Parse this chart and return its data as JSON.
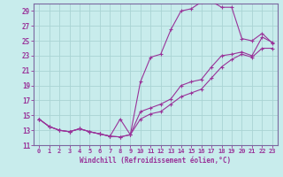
{
  "xlabel": "Windchill (Refroidissement éolien,°C)",
  "bg_color": "#c8ecec",
  "grid_color": "#aad4d4",
  "line_color": "#993399",
  "spine_color": "#7b68a0",
  "xlim": [
    -0.5,
    23.5
  ],
  "ylim": [
    11,
    30
  ],
  "xticks": [
    0,
    1,
    2,
    3,
    4,
    5,
    6,
    7,
    8,
    9,
    10,
    11,
    12,
    13,
    14,
    15,
    16,
    17,
    18,
    19,
    20,
    21,
    22,
    23
  ],
  "yticks": [
    11,
    13,
    15,
    17,
    19,
    21,
    23,
    25,
    27,
    29
  ],
  "line1_y": [
    14.5,
    13.5,
    13.0,
    12.8,
    13.2,
    12.8,
    12.5,
    12.2,
    14.5,
    12.4,
    19.5,
    22.8,
    23.2,
    26.5,
    29.0,
    29.3,
    30.2,
    30.3,
    29.5,
    29.5,
    25.3,
    25.0,
    26.0,
    24.7
  ],
  "line2_y": [
    14.5,
    13.5,
    13.0,
    12.8,
    13.2,
    12.8,
    12.5,
    12.2,
    12.1,
    12.4,
    15.5,
    16.0,
    16.5,
    17.2,
    19.0,
    19.5,
    19.8,
    21.5,
    23.0,
    23.2,
    23.5,
    23.0,
    25.5,
    24.8
  ],
  "line3_y": [
    14.5,
    13.5,
    13.0,
    12.8,
    13.2,
    12.8,
    12.5,
    12.2,
    12.1,
    12.4,
    14.5,
    15.2,
    15.5,
    16.5,
    17.5,
    18.0,
    18.5,
    20.0,
    21.5,
    22.5,
    23.2,
    22.8,
    24.0,
    24.0
  ]
}
